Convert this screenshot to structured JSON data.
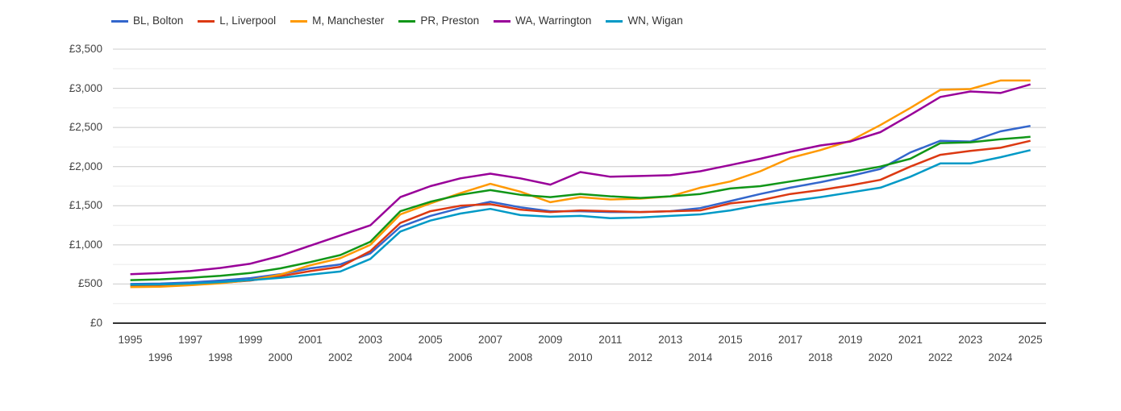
{
  "chart_data": {
    "type": "line",
    "x": [
      1995,
      1996,
      1997,
      1998,
      1999,
      2000,
      2001,
      2002,
      2003,
      2004,
      2005,
      2006,
      2007,
      2008,
      2009,
      2010,
      2011,
      2012,
      2013,
      2014,
      2015,
      2016,
      2017,
      2018,
      2019,
      2020,
      2021,
      2022,
      2023,
      2024,
      2025
    ],
    "series": [
      {
        "name": "BL, Bolton",
        "color": "#3366CC",
        "values": [
          500,
          505,
          520,
          545,
          575,
          625,
          700,
          750,
          890,
          1230,
          1370,
          1470,
          1550,
          1480,
          1430,
          1430,
          1420,
          1420,
          1430,
          1470,
          1560,
          1650,
          1730,
          1800,
          1880,
          1970,
          2180,
          2330,
          2320,
          2450,
          2520
        ]
      },
      {
        "name": "L, Liverpool",
        "color": "#DC3912",
        "values": [
          475,
          480,
          495,
          515,
          545,
          600,
          665,
          720,
          920,
          1280,
          1430,
          1500,
          1520,
          1450,
          1420,
          1440,
          1430,
          1420,
          1430,
          1440,
          1530,
          1570,
          1650,
          1700,
          1760,
          1830,
          2000,
          2150,
          2200,
          2240,
          2330
        ]
      },
      {
        "name": "M, Manchester",
        "color": "#FF9900",
        "values": [
          460,
          465,
          485,
          510,
          550,
          620,
          740,
          830,
          1000,
          1390,
          1530,
          1660,
          1780,
          1680,
          1545,
          1610,
          1580,
          1590,
          1620,
          1730,
          1810,
          1940,
          2110,
          2210,
          2330,
          2530,
          2750,
          2980,
          2990,
          3100,
          3100
        ]
      },
      {
        "name": "PR, Preston",
        "color": "#109618",
        "values": [
          550,
          560,
          580,
          605,
          640,
          700,
          780,
          870,
          1040,
          1430,
          1550,
          1640,
          1700,
          1640,
          1610,
          1650,
          1620,
          1600,
          1620,
          1650,
          1720,
          1750,
          1810,
          1870,
          1930,
          2000,
          2100,
          2300,
          2310,
          2350,
          2380
        ]
      },
      {
        "name": "WA, Warrington",
        "color": "#990099",
        "values": [
          625,
          640,
          665,
          705,
          760,
          860,
          990,
          1120,
          1250,
          1610,
          1750,
          1850,
          1910,
          1850,
          1770,
          1930,
          1870,
          1880,
          1890,
          1940,
          2020,
          2100,
          2190,
          2270,
          2320,
          2440,
          2660,
          2890,
          2960,
          2940,
          3050
        ]
      },
      {
        "name": "WN, Wigan",
        "color": "#0099C6",
        "values": [
          490,
          495,
          505,
          525,
          550,
          580,
          620,
          660,
          820,
          1170,
          1310,
          1400,
          1460,
          1380,
          1360,
          1370,
          1340,
          1350,
          1370,
          1390,
          1440,
          1510,
          1560,
          1610,
          1670,
          1730,
          1870,
          2040,
          2040,
          2120,
          2210
        ]
      }
    ],
    "y_ticks": [
      {
        "value": 0,
        "label": "£0"
      },
      {
        "value": 500,
        "label": "£500"
      },
      {
        "value": 1000,
        "label": "£1,000"
      },
      {
        "value": 1500,
        "label": "£1,500"
      },
      {
        "value": 2000,
        "label": "£2,000"
      },
      {
        "value": 2500,
        "label": "£2,500"
      },
      {
        "value": 3000,
        "label": "£3,000"
      },
      {
        "value": 3500,
        "label": "£3,500"
      }
    ],
    "y_minor_ticks": [
      250,
      750,
      1250,
      1750,
      2250,
      2750,
      3250
    ],
    "ylim": [
      0,
      3500
    ],
    "xlim": [
      1994.42,
      2025.52
    ],
    "grid": {
      "major_color": "#cccccc",
      "minor_color": "#ebebeb",
      "baseline_color": "#333333"
    },
    "legend_position": "top",
    "title": "",
    "xlabel": "",
    "ylabel": ""
  }
}
